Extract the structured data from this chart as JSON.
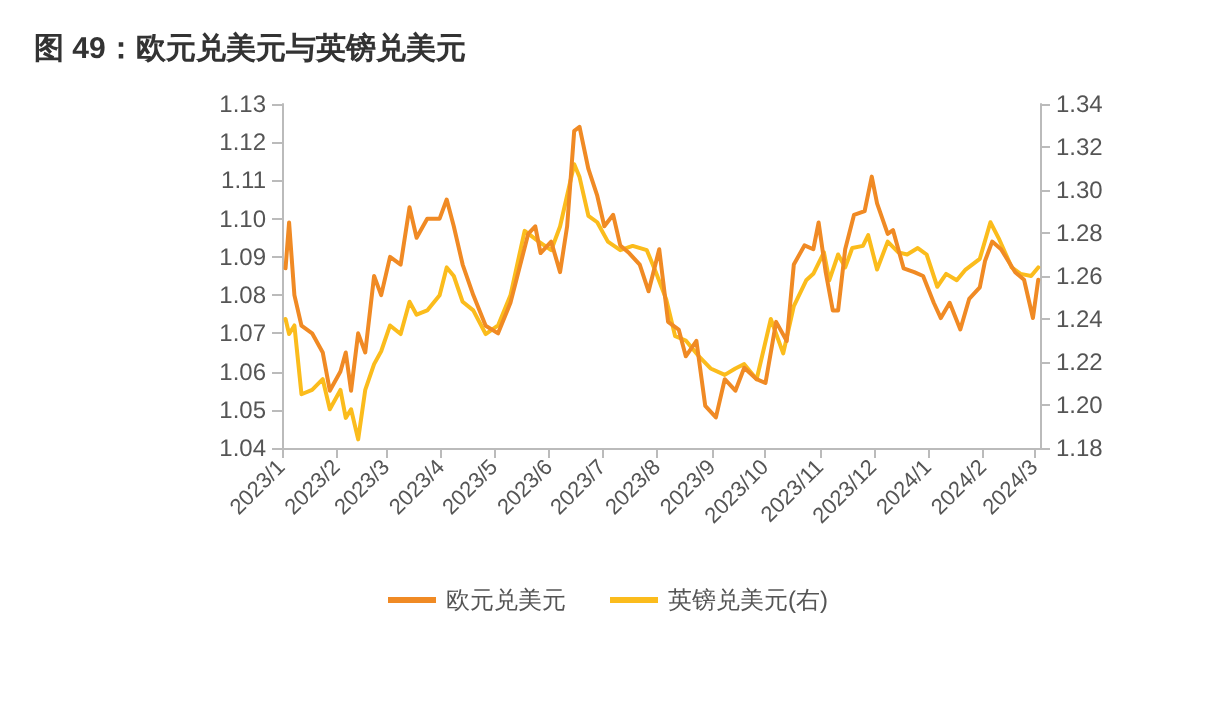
{
  "chart_data": {
    "type": "line",
    "title": "图 49：欧元兑美元与英镑兑美元",
    "xlim": [
      "2023-01-01",
      "2024-03-04"
    ],
    "xticks": [
      {
        "value": "2023-01-01",
        "label": "2023/1"
      },
      {
        "value": "2023-02-01",
        "label": "2023/2"
      },
      {
        "value": "2023-03-01",
        "label": "2023/3"
      },
      {
        "value": "2023-04-01",
        "label": "2023/4"
      },
      {
        "value": "2023-05-01",
        "label": "2023/5"
      },
      {
        "value": "2023-06-01",
        "label": "2023/6"
      },
      {
        "value": "2023-07-01",
        "label": "2023/7"
      },
      {
        "value": "2023-08-01",
        "label": "2023/8"
      },
      {
        "value": "2023-09-01",
        "label": "2023/9"
      },
      {
        "value": "2023-10-01",
        "label": "2023/10"
      },
      {
        "value": "2023-11-01",
        "label": "2023/11"
      },
      {
        "value": "2023-12-01",
        "label": "2023/12"
      },
      {
        "value": "2024-01-01",
        "label": "2024/1"
      },
      {
        "value": "2024-02-01",
        "label": "2024/2"
      },
      {
        "value": "2024-03-01",
        "label": "2024/3"
      }
    ],
    "ylim": [
      1.04,
      1.13
    ],
    "yticks": [
      1.04,
      1.05,
      1.06,
      1.07,
      1.08,
      1.09,
      {
        "value": 1.1,
        "label": "1.10"
      },
      1.11,
      1.12,
      1.13
    ],
    "y2lim": [
      1.18,
      1.34
    ],
    "y2ticks": [
      1.18,
      {
        "value": 1.2,
        "label": "1.20"
      },
      1.22,
      1.24,
      1.26,
      1.28,
      {
        "value": 1.3,
        "label": "1.30"
      },
      1.32,
      1.34
    ],
    "grid": false,
    "legend": "bottom",
    "marker": "none",
    "line_style": "solid",
    "series": [
      {
        "name": "欧元兑美元",
        "color": "#f08a24",
        "x": [
          "2023-01-03",
          "2023-01-05",
          "2023-01-08",
          "2023-01-12",
          "2023-01-18",
          "2023-01-24",
          "2023-01-28",
          "2023-02-03",
          "2023-02-06",
          "2023-02-09",
          "2023-02-13",
          "2023-02-17",
          "2023-02-22",
          "2023-02-26",
          "2023-03-03",
          "2023-03-09",
          "2023-03-14",
          "2023-03-18",
          "2023-03-24",
          "2023-03-31",
          "2023-04-04",
          "2023-04-08",
          "2023-04-13",
          "2023-04-19",
          "2023-04-26",
          "2023-05-03",
          "2023-05-10",
          "2023-05-20",
          "2023-05-24",
          "2023-05-27",
          "2023-06-02",
          "2023-06-07",
          "2023-06-11",
          "2023-06-15",
          "2023-06-18",
          "2023-06-23",
          "2023-06-28",
          "2023-07-02",
          "2023-07-07",
          "2023-07-11",
          "2023-07-16",
          "2023-07-22",
          "2023-07-27",
          "2023-08-02",
          "2023-08-07",
          "2023-08-13",
          "2023-08-17",
          "2023-08-23",
          "2023-08-28",
          "2023-09-03",
          "2023-09-08",
          "2023-09-14",
          "2023-09-19",
          "2023-09-26",
          "2023-10-01",
          "2023-10-07",
          "2023-10-13",
          "2023-10-17",
          "2023-10-23",
          "2023-10-28",
          "2023-10-31",
          "2023-11-04",
          "2023-11-08",
          "2023-11-11",
          "2023-11-15",
          "2023-11-20",
          "2023-11-26",
          "2023-11-30",
          "2023-12-03",
          "2023-12-09",
          "2023-12-12",
          "2023-12-18",
          "2023-12-24",
          "2023-12-29",
          "2024-01-04",
          "2024-01-08",
          "2024-01-13",
          "2024-01-19",
          "2024-01-24",
          "2024-01-30",
          "2024-02-02",
          "2024-02-06",
          "2024-02-11",
          "2024-02-19",
          "2024-02-24",
          "2024-02-29",
          "2024-03-03"
        ],
        "values": [
          1.087,
          1.099,
          1.08,
          1.072,
          1.07,
          1.065,
          1.055,
          1.06,
          1.065,
          1.055,
          1.07,
          1.065,
          1.085,
          1.08,
          1.09,
          1.088,
          1.103,
          1.095,
          1.1,
          1.1,
          1.105,
          1.098,
          1.088,
          1.08,
          1.072,
          1.07,
          1.078,
          1.096,
          1.098,
          1.091,
          1.094,
          1.086,
          1.098,
          1.123,
          1.124,
          1.113,
          1.106,
          1.098,
          1.101,
          1.093,
          1.091,
          1.088,
          1.081,
          1.092,
          1.073,
          1.071,
          1.064,
          1.068,
          1.051,
          1.048,
          1.058,
          1.055,
          1.061,
          1.058,
          1.057,
          1.073,
          1.068,
          1.088,
          1.093,
          1.092,
          1.099,
          1.086,
          1.076,
          1.076,
          1.092,
          1.101,
          1.102,
          1.111,
          1.104,
          1.096,
          1.097,
          1.087,
          1.086,
          1.085,
          1.078,
          1.074,
          1.078,
          1.071,
          1.079,
          1.082,
          1.089,
          1.094,
          1.092,
          1.086,
          1.084,
          1.074,
          1.084
        ]
      },
      {
        "name": "英镑兑美元(右)",
        "color": "#fbbc1c",
        "axis": "y2",
        "x": [
          "2023-01-03",
          "2023-01-05",
          "2023-01-08",
          "2023-01-12",
          "2023-01-18",
          "2023-01-24",
          "2023-01-28",
          "2023-02-03",
          "2023-02-06",
          "2023-02-09",
          "2023-02-13",
          "2023-02-17",
          "2023-02-22",
          "2023-02-26",
          "2023-03-03",
          "2023-03-09",
          "2023-03-14",
          "2023-03-18",
          "2023-03-24",
          "2023-03-31",
          "2023-04-04",
          "2023-04-08",
          "2023-04-13",
          "2023-04-19",
          "2023-04-26",
          "2023-05-03",
          "2023-05-10",
          "2023-05-18",
          "2023-05-26",
          "2023-06-02",
          "2023-06-07",
          "2023-06-15",
          "2023-06-18",
          "2023-06-23",
          "2023-06-28",
          "2023-07-04",
          "2023-07-11",
          "2023-07-18",
          "2023-07-26",
          "2023-07-31",
          "2023-08-06",
          "2023-08-11",
          "2023-08-17",
          "2023-08-24",
          "2023-08-31",
          "2023-09-08",
          "2023-09-14",
          "2023-09-19",
          "2023-09-26",
          "2023-10-04",
          "2023-10-11",
          "2023-10-17",
          "2023-10-24",
          "2023-10-28",
          "2023-11-03",
          "2023-11-06",
          "2023-11-11",
          "2023-11-15",
          "2023-11-19",
          "2023-11-25",
          "2023-11-28",
          "2023-12-03",
          "2023-12-09",
          "2023-12-15",
          "2023-12-20",
          "2023-12-26",
          "2023-12-31",
          "2024-01-06",
          "2024-01-11",
          "2024-01-17",
          "2024-01-22",
          "2024-01-30",
          "2024-02-05",
          "2024-02-10",
          "2024-02-17",
          "2024-02-22",
          "2024-02-28",
          "2024-03-03"
        ],
        "values": [
          1.24,
          1.233,
          1.237,
          1.205,
          1.207,
          1.212,
          1.198,
          1.207,
          1.194,
          1.198,
          1.184,
          1.207,
          1.219,
          1.225,
          1.237,
          1.233,
          1.248,
          1.242,
          1.244,
          1.251,
          1.264,
          1.26,
          1.248,
          1.244,
          1.233,
          1.237,
          1.251,
          1.281,
          1.276,
          1.272,
          1.283,
          1.312,
          1.306,
          1.288,
          1.285,
          1.276,
          1.272,
          1.274,
          1.272,
          1.262,
          1.249,
          1.232,
          1.23,
          1.223,
          1.217,
          1.214,
          1.217,
          1.219,
          1.212,
          1.24,
          1.224,
          1.246,
          1.258,
          1.261,
          1.271,
          1.258,
          1.27,
          1.264,
          1.273,
          1.274,
          1.279,
          1.263,
          1.276,
          1.271,
          1.27,
          1.273,
          1.27,
          1.255,
          1.261,
          1.258,
          1.263,
          1.268,
          1.285,
          1.277,
          1.264,
          1.261,
          1.26,
          1.264
        ]
      }
    ]
  }
}
